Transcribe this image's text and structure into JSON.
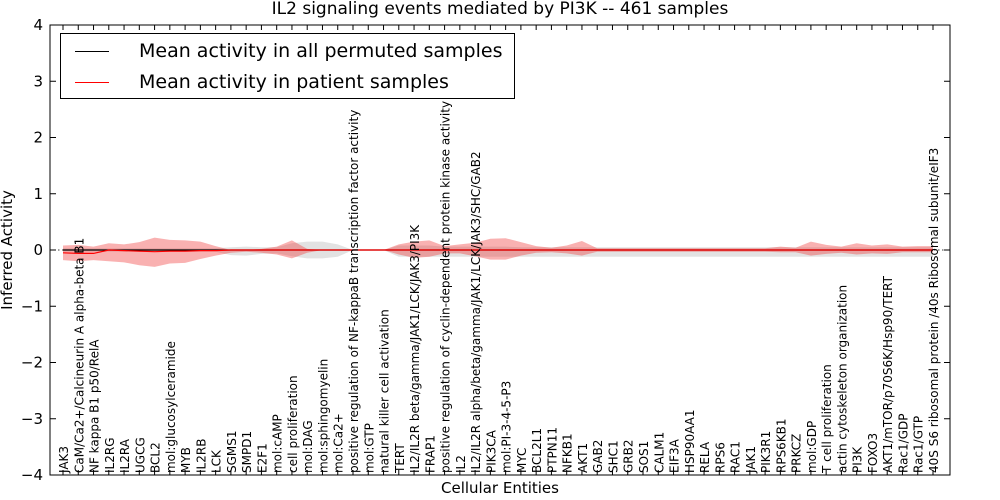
{
  "chart_data": {
    "type": "area",
    "title": "IL2 signaling events mediated by PI3K -- 461 samples",
    "xlabel": "Cellular Entities",
    "ylabel": "Inferred Activity",
    "ylim": [
      -4,
      4
    ],
    "yticks": [
      4,
      3,
      2,
      1,
      0,
      -1,
      -2,
      -3,
      -4
    ],
    "ytick_labels": [
      "4",
      "3",
      "2",
      "1",
      "0",
      "−1",
      "−2",
      "−3",
      "−4"
    ],
    "legend": {
      "placement": "top-left",
      "entries": [
        {
          "label": "Mean activity in all permuted samples",
          "color": "#000000"
        },
        {
          "label": "Mean activity in patient samples",
          "color": "#ff0000"
        }
      ]
    },
    "categories": [
      "JAK3",
      "CaM/Ca2+/Calcineurin A alpha-beta B1",
      "NF kappa B1 p50/RelA",
      "IL2RG",
      "IL2RA",
      "UGCG",
      "BCL2",
      "mol:glucosylceramide",
      "MYB",
      "IL2RB",
      "LCK",
      "SGMS1",
      "SMPD1",
      "E2F1",
      "mol:cAMP",
      "cell proliferation",
      "mol:DAG",
      "mol:sphingomyelin",
      "mol:Ca2+",
      "positive regulation of NF-kappaB transcription factor activity",
      "mol:GTP",
      "natural killer cell activation",
      "TERT",
      "IL2/IL2R beta/gamma/JAK1/LCK/JAK3/PI3K",
      "FRAP1",
      "positive regulation of cyclin-dependent protein kinase activity",
      "IL2",
      "IL2/IL2R alpha/beta/gamma/JAK1/LCK/JAK3/SHC/GAB2",
      "PIK3CA",
      "mol:PI-3-4-5-P3",
      "MYC",
      "BCL2L1",
      "PTPN11",
      "NFKB1",
      "AKT1",
      "GAB2",
      "SHC1",
      "GRB2",
      "SOS1",
      "CALM1",
      "EIF3A",
      "HSP90AA1",
      "RELA",
      "RPS6",
      "RAC1",
      "JAK1",
      "PIK3R1",
      "RPS6KB1",
      "PRKCZ",
      "mol:GDP",
      "T cell proliferation",
      "actin cytoskeleton organization",
      "PI3K",
      "FOXO3",
      "AKT1/mTOR/p70S6K/Hsp90/TERT",
      "Rac1/GDP",
      "Rac1/GTP",
      "40S S6 ribosomal protein /40s Ribosomal subunit/eIF3"
    ],
    "series": [
      {
        "name": "Mean activity in patient samples",
        "color": "#ff0000",
        "values": [
          -0.05,
          -0.06,
          -0.06,
          0.0,
          -0.01,
          -0.02,
          -0.03,
          -0.02,
          -0.02,
          -0.01,
          -0.01,
          0.0,
          0.0,
          0.0,
          0.0,
          0.0,
          0.0,
          0.0,
          0.0,
          0.0,
          0.0,
          0.0,
          0.0,
          0.0,
          0.0,
          0.0,
          0.0,
          0.0,
          0.0,
          0.0,
          0.0,
          0.0,
          0.0,
          0.0,
          0.0,
          0.0,
          0.0,
          0.0,
          0.0,
          0.0,
          0.0,
          0.0,
          0.0,
          0.0,
          0.0,
          0.0,
          0.0,
          0.0,
          0.0,
          0.0,
          0.0,
          0.0,
          0.0,
          0.0,
          0.0,
          0.0,
          0.0,
          0.0
        ],
        "band_upper": [
          0.08,
          0.09,
          0.06,
          0.12,
          0.1,
          0.14,
          0.22,
          0.18,
          0.17,
          0.15,
          0.07,
          0.0,
          0.0,
          0.02,
          0.06,
          0.17,
          0.02,
          0.0,
          0.0,
          0.0,
          0.0,
          0.0,
          0.1,
          0.15,
          0.17,
          0.07,
          0.1,
          0.13,
          0.2,
          0.21,
          0.14,
          0.07,
          0.04,
          0.08,
          0.16,
          0.03,
          0.03,
          0.03,
          0.03,
          0.03,
          0.03,
          0.03,
          0.03,
          0.03,
          0.03,
          0.03,
          0.03,
          0.06,
          0.04,
          0.15,
          0.09,
          0.06,
          0.12,
          0.08,
          0.1,
          0.06,
          0.07,
          0.07
        ],
        "band_lower": [
          -0.18,
          -0.2,
          -0.18,
          -0.2,
          -0.22,
          -0.27,
          -0.3,
          -0.24,
          -0.23,
          -0.16,
          -0.1,
          -0.05,
          -0.03,
          -0.05,
          -0.08,
          -0.15,
          -0.05,
          0.0,
          0.0,
          0.0,
          0.0,
          0.0,
          -0.08,
          -0.14,
          -0.12,
          -0.06,
          -0.06,
          -0.11,
          -0.17,
          -0.17,
          -0.1,
          -0.05,
          -0.04,
          -0.06,
          -0.1,
          -0.03,
          -0.03,
          -0.03,
          -0.03,
          -0.03,
          -0.03,
          -0.03,
          -0.03,
          -0.03,
          -0.03,
          -0.03,
          -0.03,
          -0.04,
          -0.04,
          -0.1,
          -0.07,
          -0.05,
          -0.08,
          -0.06,
          -0.07,
          -0.04,
          -0.04,
          -0.04
        ]
      },
      {
        "name": "Mean activity in all permuted samples",
        "color": "#000000",
        "values": [
          0.0,
          0.0,
          0.0,
          0.0,
          0.0,
          0.0,
          0.0,
          0.0,
          0.0,
          0.0,
          0.0,
          0.0,
          0.0,
          0.0,
          0.0,
          0.0,
          0.0,
          0.0,
          0.0,
          0.0,
          0.0,
          0.0,
          0.0,
          0.0,
          0.0,
          0.0,
          0.0,
          0.0,
          0.0,
          0.0,
          0.0,
          0.0,
          0.0,
          0.0,
          0.0,
          0.0,
          0.0,
          0.0,
          0.0,
          0.0,
          0.0,
          0.0,
          0.0,
          0.0,
          0.0,
          0.0,
          0.0,
          0.0,
          0.0,
          0.0,
          0.0,
          0.0,
          0.0,
          0.0,
          0.0,
          0.0,
          0.0,
          0.0
        ],
        "band_upper": [
          0.03,
          0.03,
          0.03,
          0.03,
          0.03,
          0.03,
          0.03,
          0.03,
          0.03,
          0.03,
          0.03,
          0.05,
          0.06,
          0.05,
          0.05,
          0.12,
          0.15,
          0.15,
          0.1,
          0.0,
          0.0,
          0.0,
          0.08,
          0.08,
          0.08,
          0.06,
          0.06,
          0.06,
          0.06,
          0.06,
          0.05,
          0.05,
          0.05,
          0.05,
          0.05,
          0.05,
          0.05,
          0.05,
          0.05,
          0.05,
          0.05,
          0.05,
          0.05,
          0.05,
          0.05,
          0.05,
          0.05,
          0.05,
          0.05,
          0.05,
          0.05,
          0.05,
          0.05,
          0.05,
          0.05,
          0.05,
          0.05,
          0.05
        ],
        "band_lower": [
          -0.03,
          -0.03,
          -0.03,
          -0.03,
          -0.03,
          -0.03,
          -0.03,
          -0.03,
          -0.03,
          -0.03,
          -0.03,
          -0.09,
          -0.1,
          -0.07,
          -0.06,
          -0.11,
          -0.15,
          -0.15,
          -0.12,
          0.0,
          0.0,
          0.0,
          -0.12,
          -0.12,
          -0.12,
          -0.12,
          -0.12,
          -0.12,
          -0.12,
          -0.12,
          -0.12,
          -0.12,
          -0.12,
          -0.12,
          -0.12,
          -0.12,
          -0.12,
          -0.12,
          -0.12,
          -0.12,
          -0.12,
          -0.12,
          -0.12,
          -0.12,
          -0.12,
          -0.12,
          -0.12,
          -0.12,
          -0.12,
          -0.12,
          -0.12,
          -0.12,
          -0.12,
          -0.12,
          -0.12,
          -0.12,
          -0.12,
          -0.12
        ]
      }
    ]
  }
}
